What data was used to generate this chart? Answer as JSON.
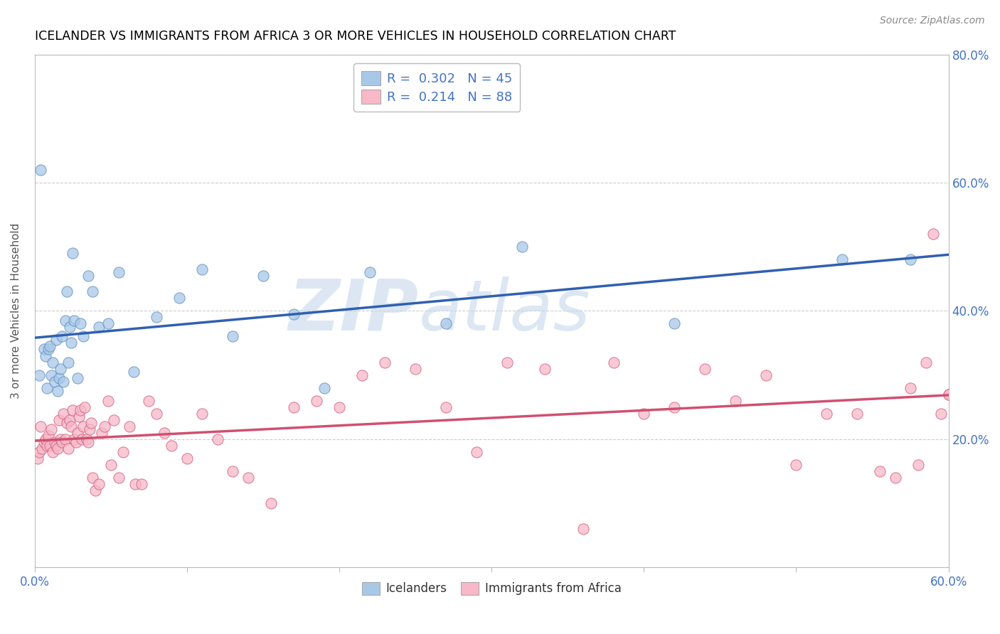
{
  "title": "ICELANDER VS IMMIGRANTS FROM AFRICA 3 OR MORE VEHICLES IN HOUSEHOLD CORRELATION CHART",
  "source": "Source: ZipAtlas.com",
  "ylabel": "3 or more Vehicles in Household",
  "xlim": [
    0.0,
    0.6
  ],
  "ylim": [
    0.0,
    0.8
  ],
  "right_ytick_labels": [
    "20.0%",
    "40.0%",
    "60.0%",
    "80.0%"
  ],
  "right_ytick_positions": [
    0.2,
    0.4,
    0.6,
    0.8
  ],
  "blue_color": "#a8c8e8",
  "pink_color": "#f8b8c8",
  "blue_edge_color": "#6090c0",
  "pink_edge_color": "#d06080",
  "blue_line_color": "#3060b0",
  "pink_line_color": "#d05070",
  "watermark_color": "#c5d8ec",
  "bottom_legend_blue": "Icelanders",
  "bottom_legend_pink": "Immigrants from Africa",
  "blue_scatter_x": [
    0.003,
    0.004,
    0.006,
    0.007,
    0.008,
    0.009,
    0.01,
    0.011,
    0.012,
    0.013,
    0.014,
    0.015,
    0.016,
    0.017,
    0.018,
    0.019,
    0.02,
    0.021,
    0.022,
    0.023,
    0.024,
    0.025,
    0.026,
    0.028,
    0.03,
    0.032,
    0.035,
    0.038,
    0.042,
    0.048,
    0.055,
    0.065,
    0.08,
    0.095,
    0.11,
    0.13,
    0.15,
    0.17,
    0.19,
    0.22,
    0.27,
    0.32,
    0.42,
    0.53,
    0.575
  ],
  "blue_scatter_y": [
    0.3,
    0.62,
    0.34,
    0.33,
    0.28,
    0.34,
    0.345,
    0.3,
    0.32,
    0.29,
    0.355,
    0.275,
    0.295,
    0.31,
    0.36,
    0.29,
    0.385,
    0.43,
    0.32,
    0.375,
    0.35,
    0.49,
    0.385,
    0.295,
    0.38,
    0.36,
    0.455,
    0.43,
    0.375,
    0.38,
    0.46,
    0.305,
    0.39,
    0.42,
    0.465,
    0.36,
    0.455,
    0.395,
    0.28,
    0.46,
    0.38,
    0.5,
    0.38,
    0.48,
    0.48
  ],
  "pink_scatter_x": [
    0.002,
    0.003,
    0.004,
    0.005,
    0.006,
    0.007,
    0.008,
    0.009,
    0.01,
    0.011,
    0.012,
    0.013,
    0.014,
    0.015,
    0.016,
    0.017,
    0.018,
    0.019,
    0.02,
    0.021,
    0.022,
    0.023,
    0.024,
    0.025,
    0.026,
    0.027,
    0.028,
    0.029,
    0.03,
    0.031,
    0.032,
    0.033,
    0.034,
    0.035,
    0.036,
    0.037,
    0.038,
    0.04,
    0.042,
    0.044,
    0.046,
    0.048,
    0.05,
    0.052,
    0.055,
    0.058,
    0.062,
    0.066,
    0.07,
    0.075,
    0.08,
    0.085,
    0.09,
    0.1,
    0.11,
    0.12,
    0.13,
    0.14,
    0.155,
    0.17,
    0.185,
    0.2,
    0.215,
    0.23,
    0.25,
    0.27,
    0.29,
    0.31,
    0.335,
    0.36,
    0.38,
    0.4,
    0.42,
    0.44,
    0.46,
    0.48,
    0.5,
    0.52,
    0.54,
    0.555,
    0.565,
    0.575,
    0.58,
    0.585,
    0.59,
    0.595,
    0.6,
    0.6
  ],
  "pink_scatter_y": [
    0.17,
    0.18,
    0.22,
    0.185,
    0.195,
    0.2,
    0.19,
    0.205,
    0.19,
    0.215,
    0.18,
    0.195,
    0.19,
    0.185,
    0.23,
    0.2,
    0.195,
    0.24,
    0.2,
    0.225,
    0.185,
    0.23,
    0.22,
    0.245,
    0.2,
    0.195,
    0.21,
    0.235,
    0.245,
    0.2,
    0.22,
    0.25,
    0.2,
    0.195,
    0.215,
    0.225,
    0.14,
    0.12,
    0.13,
    0.21,
    0.22,
    0.26,
    0.16,
    0.23,
    0.14,
    0.18,
    0.22,
    0.13,
    0.13,
    0.26,
    0.24,
    0.21,
    0.19,
    0.17,
    0.24,
    0.2,
    0.15,
    0.14,
    0.1,
    0.25,
    0.26,
    0.25,
    0.3,
    0.32,
    0.31,
    0.25,
    0.18,
    0.32,
    0.31,
    0.06,
    0.32,
    0.24,
    0.25,
    0.31,
    0.26,
    0.3,
    0.16,
    0.24,
    0.24,
    0.15,
    0.14,
    0.28,
    0.16,
    0.32,
    0.52,
    0.24,
    0.27,
    0.27
  ]
}
